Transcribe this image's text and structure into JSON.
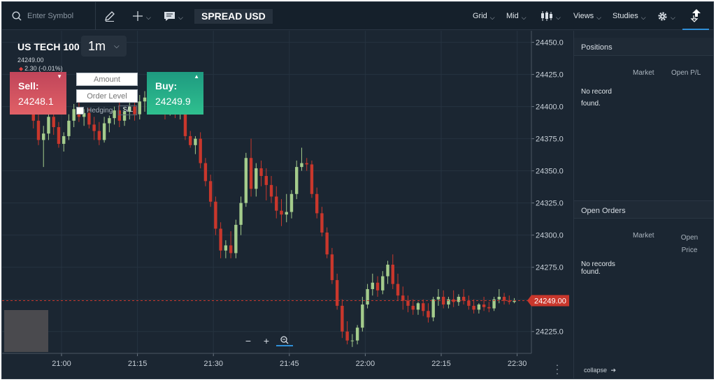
{
  "toolbar": {
    "search_placeholder": "Enter Symbol",
    "spread_label": "SPREAD USD",
    "grid_label": "Grid",
    "mid_label": "Mid",
    "views_label": "Views",
    "studies_label": "Studies"
  },
  "symbol": {
    "name": "US TECH 100",
    "timeframe": "1m",
    "last_price": "24249.00",
    "change": "2.30 (-0.01%)"
  },
  "trade": {
    "sell_label": "Sell:",
    "sell_price": "24248.1",
    "buy_label": "Buy:",
    "buy_price": "24249.9",
    "amount_placeholder": "Amount",
    "order_level_placeholder": "Order Level",
    "hedging_label": "Hedging",
    "sl_label": "S/L"
  },
  "positions": {
    "title": "Positions",
    "col_market": "Market",
    "col_open_pl": "Open P/L",
    "empty_text": "No record found."
  },
  "open_orders": {
    "title": "Open Orders",
    "col_market": "Market",
    "col_open_price": "Open Price",
    "empty_text": "No records found."
  },
  "collapse_label": "collapse",
  "colors": {
    "background": "#1b2632",
    "up": "#a4cc8c",
    "down": "#c9372c",
    "sell": "#d9525d",
    "buy": "#25b088",
    "price_tag": "#c9372c",
    "accent": "#2f8fd8"
  },
  "chart_data": {
    "type": "candlestick",
    "x_ticks": [
      "21:00",
      "21:15",
      "21:30",
      "21:45",
      "22:00",
      "22:15",
      "22:30"
    ],
    "y_ticks": [
      "24450.0",
      "24425.0",
      "24400.0",
      "24375.0",
      "24350.0",
      "24325.0",
      "24300.0",
      "24275.0",
      "24250.0",
      "24225.0"
    ],
    "ylim": [
      24208,
      24459
    ],
    "current_price_label": "24249.00",
    "current_price": 24249,
    "candles": [
      {
        "o": 24411,
        "h": 24418,
        "c": 24400,
        "l": 24397
      },
      {
        "o": 24400,
        "h": 24407,
        "c": 24389,
        "l": 24383
      },
      {
        "o": 24389,
        "h": 24398,
        "c": 24374,
        "l": 24370
      },
      {
        "o": 24374,
        "h": 24385,
        "c": 24379,
        "l": 24353
      },
      {
        "o": 24379,
        "h": 24395,
        "c": 24392,
        "l": 24374
      },
      {
        "o": 24392,
        "h": 24396,
        "c": 24384,
        "l": 24378
      },
      {
        "o": 24384,
        "h": 24388,
        "c": 24371,
        "l": 24368
      },
      {
        "o": 24371,
        "h": 24380,
        "c": 24377,
        "l": 24365
      },
      {
        "o": 24377,
        "h": 24394,
        "c": 24389,
        "l": 24374
      },
      {
        "o": 24389,
        "h": 24402,
        "c": 24398,
        "l": 24384
      },
      {
        "o": 24398,
        "h": 24405,
        "c": 24392,
        "l": 24388
      },
      {
        "o": 24392,
        "h": 24398,
        "c": 24395,
        "l": 24385
      },
      {
        "o": 24395,
        "h": 24399,
        "c": 24386,
        "l": 24383
      },
      {
        "o": 24386,
        "h": 24392,
        "c": 24381,
        "l": 24374
      },
      {
        "o": 24381,
        "h": 24388,
        "c": 24374,
        "l": 24370
      },
      {
        "o": 24374,
        "h": 24392,
        "c": 24387,
        "l": 24372
      },
      {
        "o": 24387,
        "h": 24393,
        "c": 24391,
        "l": 24380
      },
      {
        "o": 24391,
        "h": 24400,
        "c": 24397,
        "l": 24386
      },
      {
        "o": 24397,
        "h": 24403,
        "c": 24389,
        "l": 24384
      },
      {
        "o": 24389,
        "h": 24399,
        "c": 24396,
        "l": 24385
      },
      {
        "o": 24396,
        "h": 24403,
        "c": 24400,
        "l": 24390
      },
      {
        "o": 24400,
        "h": 24406,
        "c": 24394,
        "l": 24389
      },
      {
        "o": 24394,
        "h": 24409,
        "c": 24404,
        "l": 24390
      },
      {
        "o": 24404,
        "h": 24412,
        "c": 24407,
        "l": 24396
      },
      {
        "o": 24407,
        "h": 24414,
        "c": 24402,
        "l": 24397
      },
      {
        "o": 24402,
        "h": 24413,
        "c": 24411,
        "l": 24399
      },
      {
        "o": 24411,
        "h": 24417,
        "c": 24406,
        "l": 24401
      },
      {
        "o": 24406,
        "h": 24409,
        "c": 24396,
        "l": 24390
      },
      {
        "o": 24396,
        "h": 24402,
        "c": 24399,
        "l": 24393
      },
      {
        "o": 24399,
        "h": 24403,
        "c": 24394,
        "l": 24391
      },
      {
        "o": 24394,
        "h": 24399,
        "c": 24397,
        "l": 24390
      },
      {
        "o": 24397,
        "h": 24400,
        "c": 24377,
        "l": 24374
      },
      {
        "o": 24377,
        "h": 24381,
        "c": 24370,
        "l": 24368
      },
      {
        "o": 24370,
        "h": 24377,
        "c": 24375,
        "l": 24363
      },
      {
        "o": 24375,
        "h": 24380,
        "c": 24356,
        "l": 24352
      },
      {
        "o": 24356,
        "h": 24360,
        "c": 24342,
        "l": 24338
      },
      {
        "o": 24342,
        "h": 24347,
        "c": 24326,
        "l": 24322
      },
      {
        "o": 24326,
        "h": 24330,
        "c": 24305,
        "l": 24300
      },
      {
        "o": 24305,
        "h": 24310,
        "c": 24288,
        "l": 24282
      },
      {
        "o": 24288,
        "h": 24296,
        "c": 24292,
        "l": 24282
      },
      {
        "o": 24292,
        "h": 24303,
        "c": 24286,
        "l": 24282
      },
      {
        "o": 24286,
        "h": 24312,
        "c": 24308,
        "l": 24282
      },
      {
        "o": 24308,
        "h": 24330,
        "c": 24325,
        "l": 24300
      },
      {
        "o": 24325,
        "h": 24364,
        "c": 24360,
        "l": 24322
      },
      {
        "o": 24360,
        "h": 24375,
        "c": 24336,
        "l": 24330
      },
      {
        "o": 24336,
        "h": 24356,
        "c": 24352,
        "l": 24330
      },
      {
        "o": 24352,
        "h": 24358,
        "c": 24346,
        "l": 24338
      },
      {
        "o": 24346,
        "h": 24352,
        "c": 24339,
        "l": 24327
      },
      {
        "o": 24339,
        "h": 24346,
        "c": 24330,
        "l": 24325
      },
      {
        "o": 24330,
        "h": 24338,
        "c": 24319,
        "l": 24313
      },
      {
        "o": 24319,
        "h": 24328,
        "c": 24316,
        "l": 24307
      },
      {
        "o": 24316,
        "h": 24332,
        "c": 24318,
        "l": 24310
      },
      {
        "o": 24318,
        "h": 24335,
        "c": 24332,
        "l": 24313
      },
      {
        "o": 24332,
        "h": 24358,
        "c": 24353,
        "l": 24328
      },
      {
        "o": 24353,
        "h": 24368,
        "c": 24356,
        "l": 24350
      },
      {
        "o": 24356,
        "h": 24360,
        "c": 24355,
        "l": 24350
      },
      {
        "o": 24355,
        "h": 24358,
        "c": 24332,
        "l": 24329
      },
      {
        "o": 24332,
        "h": 24337,
        "c": 24317,
        "l": 24313
      },
      {
        "o": 24317,
        "h": 24322,
        "c": 24302,
        "l": 24299
      },
      {
        "o": 24302,
        "h": 24306,
        "c": 24285,
        "l": 24282
      },
      {
        "o": 24285,
        "h": 24290,
        "c": 24265,
        "l": 24262
      },
      {
        "o": 24265,
        "h": 24270,
        "c": 24245,
        "l": 24242
      },
      {
        "o": 24245,
        "h": 24250,
        "c": 24225,
        "l": 24220
      },
      {
        "o": 24225,
        "h": 24233,
        "c": 24218,
        "l": 24215
      },
      {
        "o": 24218,
        "h": 24223,
        "c": 24218,
        "l": 24213
      },
      {
        "o": 24218,
        "h": 24230,
        "c": 24228,
        "l": 24215
      },
      {
        "o": 24228,
        "h": 24252,
        "c": 24246,
        "l": 24225
      },
      {
        "o": 24246,
        "h": 24262,
        "c": 24258,
        "l": 24243
      },
      {
        "o": 24258,
        "h": 24270,
        "c": 24263,
        "l": 24253
      },
      {
        "o": 24263,
        "h": 24268,
        "c": 24257,
        "l": 24252
      },
      {
        "o": 24257,
        "h": 24272,
        "c": 24268,
        "l": 24254
      },
      {
        "o": 24268,
        "h": 24280,
        "c": 24277,
        "l": 24262
      },
      {
        "o": 24277,
        "h": 24285,
        "c": 24262,
        "l": 24258
      },
      {
        "o": 24262,
        "h": 24270,
        "c": 24253,
        "l": 24249
      },
      {
        "o": 24253,
        "h": 24260,
        "c": 24249,
        "l": 24242
      },
      {
        "o": 24249,
        "h": 24253,
        "c": 24245,
        "l": 24240
      },
      {
        "o": 24245,
        "h": 24250,
        "c": 24242,
        "l": 24238
      },
      {
        "o": 24242,
        "h": 24248,
        "c": 24247,
        "l": 24238
      },
      {
        "o": 24247,
        "h": 24250,
        "c": 24241,
        "l": 24237
      },
      {
        "o": 24241,
        "h": 24247,
        "c": 24236,
        "l": 24232
      },
      {
        "o": 24236,
        "h": 24252,
        "c": 24250,
        "l": 24233
      },
      {
        "o": 24250,
        "h": 24258,
        "c": 24252,
        "l": 24245
      },
      {
        "o": 24252,
        "h": 24257,
        "c": 24246,
        "l": 24243
      },
      {
        "o": 24246,
        "h": 24252,
        "c": 24250,
        "l": 24243
      },
      {
        "o": 24250,
        "h": 24257,
        "c": 24248,
        "l": 24244
      },
      {
        "o": 24248,
        "h": 24254,
        "c": 24252,
        "l": 24245
      },
      {
        "o": 24252,
        "h": 24258,
        "c": 24249,
        "l": 24246
      },
      {
        "o": 24249,
        "h": 24253,
        "c": 24245,
        "l": 24242
      },
      {
        "o": 24245,
        "h": 24250,
        "c": 24242,
        "l": 24239
      },
      {
        "o": 24242,
        "h": 24247,
        "c": 24246,
        "l": 24239
      },
      {
        "o": 24246,
        "h": 24252,
        "c": 24244,
        "l": 24241
      },
      {
        "o": 24244,
        "h": 24248,
        "c": 24243,
        "l": 24240
      },
      {
        "o": 24243,
        "h": 24252,
        "c": 24250,
        "l": 24241
      },
      {
        "o": 24250,
        "h": 24258,
        "c": 24252,
        "l": 24247
      },
      {
        "o": 24252,
        "h": 24255,
        "c": 24249,
        "l": 24246
      },
      {
        "o": 24249,
        "h": 24253,
        "c": 24248,
        "l": 24246
      },
      {
        "o": 24248,
        "h": 24251,
        "c": 24249,
        "l": 24247
      }
    ]
  }
}
